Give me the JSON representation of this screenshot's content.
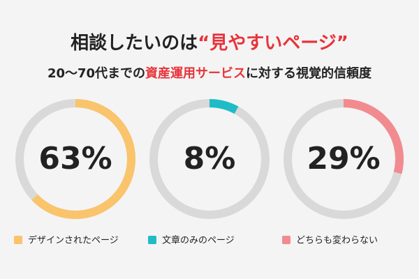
{
  "header": {
    "title_parts": [
      "相談したいのは",
      "“見やすいページ”"
    ],
    "subtitle_parts": [
      "20〜70代までの",
      "資産運用サービス",
      "に対する視覚的信頼度"
    ],
    "highlight_color": "#e8333a"
  },
  "chart_data": [
    {
      "type": "donut",
      "series": [
        {
          "name": "デザインされたページ",
          "color": "#f9c46b",
          "values": [
            63
          ],
          "value_labels": [
            "63%"
          ]
        }
      ]
    },
    {
      "type": "donut",
      "series": [
        {
          "name": "文章のみのページ",
          "color": "#1fbcc7",
          "values": [
            8
          ],
          "value_labels": [
            "8%"
          ]
        }
      ]
    },
    {
      "type": "donut",
      "series": [
        {
          "name": "どちらも変わらない",
          "color": "#f28b8f",
          "values": [
            29
          ],
          "value_labels": [
            "29%"
          ]
        }
      ]
    }
  ]
}
